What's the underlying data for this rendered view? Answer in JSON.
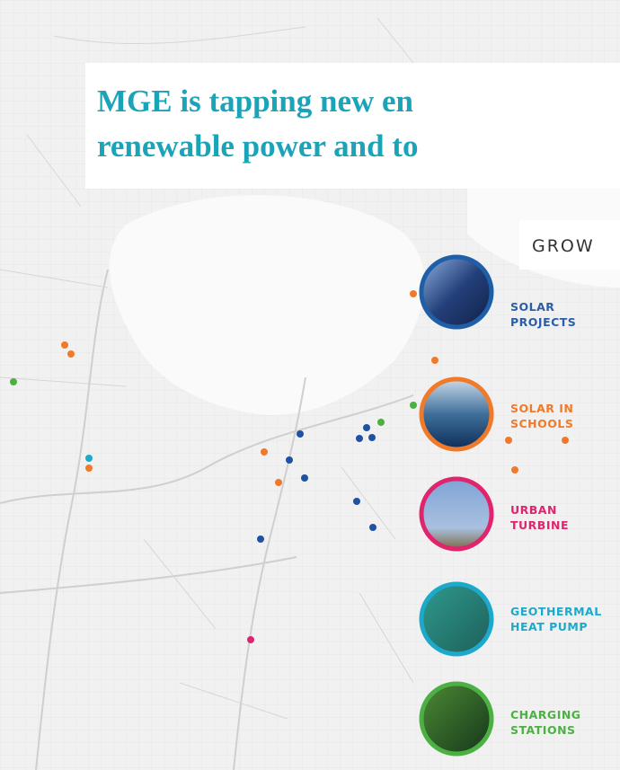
{
  "headline": {
    "lines": [
      "MGE is tapping new en",
      "renewable power and to"
    ]
  },
  "heading": "GROW",
  "legend": [
    {
      "lines": [
        "SOLAR",
        "PROJECTS"
      ]
    },
    {
      "lines": [
        "SOLAR IN",
        "SCHOOLS"
      ]
    },
    {
      "lines": [
        "URBAN",
        "TURBINE"
      ]
    },
    {
      "lines": [
        "GEOTHERMAL",
        "HEAT PUMP"
      ]
    },
    {
      "lines": [
        "CHARGING",
        "STATIONS"
      ]
    }
  ]
}
